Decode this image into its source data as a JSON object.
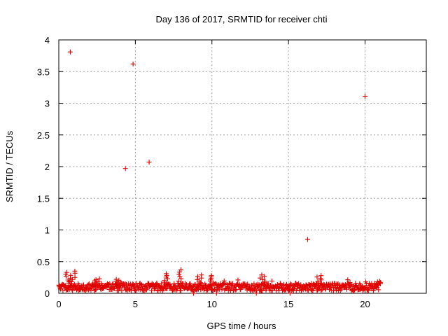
{
  "chart_data": {
    "type": "scatter",
    "title": "Day 136 of 2017, SRMTID for receiver chti",
    "xlabel": "GPS time / hours",
    "ylabel": "SRMTID / TECUs",
    "xlim": [
      0,
      24
    ],
    "ylim": [
      0,
      4
    ],
    "xticks": [
      "0",
      "5",
      "10",
      "15",
      "20"
    ],
    "yticks": [
      "0",
      "0.5",
      "1",
      "1.5",
      "2",
      "2.5",
      "3",
      "3.5",
      "4"
    ],
    "xtick_values": [
      0,
      5,
      10,
      15,
      20
    ],
    "ytick_values": [
      0,
      0.5,
      1,
      1.5,
      2,
      2.5,
      3,
      3.5,
      4
    ],
    "grid": true,
    "marker": "+",
    "color": "#e00000",
    "outliers": [
      {
        "x": 0.75,
        "y": 3.81
      },
      {
        "x": 4.85,
        "y": 3.62
      },
      {
        "x": 4.35,
        "y": 1.97
      },
      {
        "x": 5.9,
        "y": 2.07
      },
      {
        "x": 16.25,
        "y": 0.85
      },
      {
        "x": 20.0,
        "y": 3.11
      }
    ],
    "baseline": {
      "x_start": 0,
      "x_end": 20.9,
      "step": 0.03,
      "typical_range": [
        0.04,
        0.16
      ],
      "bursts": [
        {
          "x": 0.6,
          "y": 0.33
        },
        {
          "x": 0.95,
          "y": 0.35
        },
        {
          "x": 2.5,
          "y": 0.23
        },
        {
          "x": 3.9,
          "y": 0.22
        },
        {
          "x": 7.0,
          "y": 0.31
        },
        {
          "x": 7.9,
          "y": 0.37
        },
        {
          "x": 9.2,
          "y": 0.29
        },
        {
          "x": 10.0,
          "y": 0.28
        },
        {
          "x": 13.3,
          "y": 0.29
        },
        {
          "x": 17.0,
          "y": 0.28
        },
        {
          "x": 20.9,
          "y": 0.19
        }
      ],
      "dips": [
        {
          "x": 8.8,
          "y": 0.0
        },
        {
          "x": 10.3,
          "y": 0.0
        },
        {
          "x": 12.9,
          "y": 0.0
        },
        {
          "x": 15.1,
          "y": 0.0
        }
      ]
    }
  }
}
